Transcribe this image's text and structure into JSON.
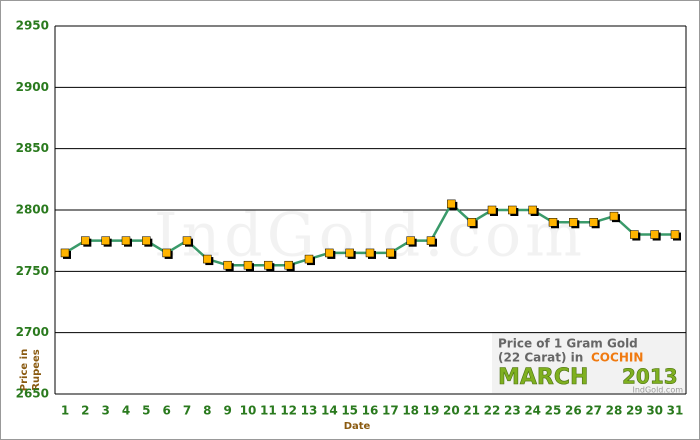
{
  "chart_data": {
    "type": "line",
    "watermark": "IndGold.com",
    "x_label": "Date",
    "y_label": [
      "Price in",
      "Rupees"
    ],
    "caption": {
      "line1": "Price of 1 Gram Gold",
      "line2": "(22 Carat) in",
      "city": "COCHIN",
      "month": "MARCH",
      "year": "2013",
      "site": "IndGold.com"
    },
    "categories": [
      "1",
      "2",
      "3",
      "4",
      "5",
      "6",
      "7",
      "8",
      "9",
      "10",
      "11",
      "12",
      "13",
      "14",
      "15",
      "16",
      "17",
      "18",
      "19",
      "20",
      "21",
      "22",
      "23",
      "24",
      "25",
      "26",
      "27",
      "28",
      "29",
      "30",
      "31"
    ],
    "series": [
      {
        "color": "#3a9a6a",
        "marker_color": "#ffb400",
        "values": [
          2765,
          2775,
          2775,
          2775,
          2775,
          2765,
          2775,
          2760,
          2755,
          2755,
          2755,
          2755,
          2760,
          2765,
          2765,
          2765,
          2765,
          2775,
          2775,
          2805,
          2790,
          2800,
          2800,
          2800,
          2790,
          2790,
          2790,
          2795,
          2780,
          2780,
          2780
        ]
      }
    ],
    "ylim": [
      2650,
      2950
    ],
    "yticks": [
      2650,
      2700,
      2750,
      2800,
      2850,
      2900,
      2950
    ],
    "grid": true
  }
}
